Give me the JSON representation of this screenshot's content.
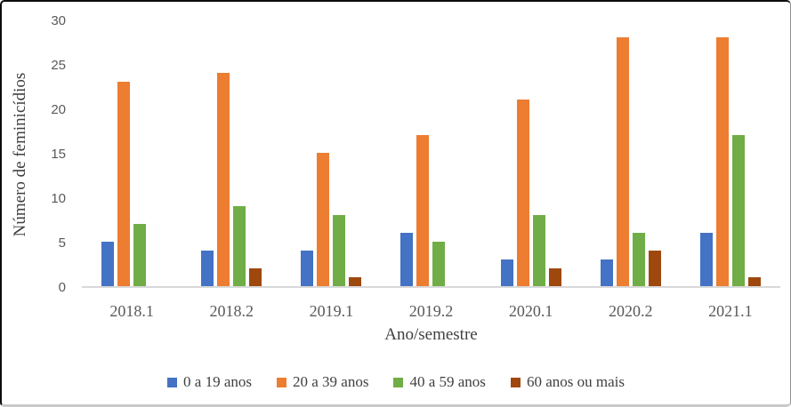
{
  "chart_data": {
    "type": "bar",
    "title": "",
    "xlabel": "Ano/semestre",
    "ylabel": "Número de feminicídios",
    "categories": [
      "2018.1",
      "2018.2",
      "2019.1",
      "2019.2",
      "2020.1",
      "2020.2",
      "2021.1"
    ],
    "series": [
      {
        "name": "0 a 19 anos",
        "color": "#4472C4",
        "values": [
          5,
          4,
          4,
          6,
          3,
          3,
          6
        ]
      },
      {
        "name": "20 a 39 anos",
        "color": "#ED7D31",
        "values": [
          23,
          24,
          15,
          17,
          21,
          28,
          28
        ]
      },
      {
        "name": "40 a 59 anos",
        "color": "#70AD47",
        "values": [
          7,
          9,
          8,
          5,
          8,
          6,
          17
        ]
      },
      {
        "name": "60 anos ou mais",
        "color": "#9E480E",
        "values": [
          0,
          2,
          1,
          0,
          2,
          4,
          1
        ]
      }
    ],
    "ylim": [
      0,
      30
    ],
    "yticks": [
      0,
      5,
      10,
      15,
      20,
      25,
      30
    ],
    "grid": false,
    "legend_position": "bottom",
    "colors": {
      "axis_line": "#d9d9d9",
      "tick_label": "#595959",
      "axis_title": "#404040"
    }
  }
}
